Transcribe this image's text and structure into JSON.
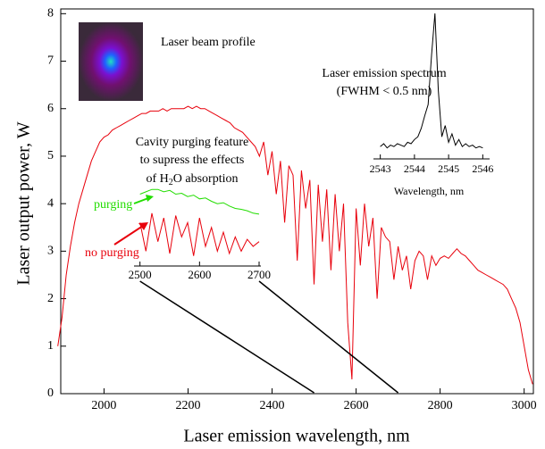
{
  "chart_data": [
    {
      "type": "line",
      "x_label": "Laser emission wavelength, nm",
      "y_label": "Laser output power, W",
      "xlim": [
        1897,
        3022
      ],
      "ylim": [
        0,
        8.1
      ],
      "xticks": [
        2000,
        2200,
        2400,
        2600,
        2800,
        3000
      ],
      "yticks": [
        0,
        1,
        2,
        3,
        4,
        5,
        6,
        7,
        8
      ],
      "annotations": {
        "beam": "Laser beam profile"
      },
      "x": [
        1890,
        1900,
        1910,
        1920,
        1930,
        1940,
        1950,
        1960,
        1970,
        1980,
        1990,
        2000,
        2010,
        2020,
        2030,
        2040,
        2050,
        2060,
        2070,
        2080,
        2090,
        2100,
        2110,
        2120,
        2130,
        2140,
        2150,
        2160,
        2170,
        2180,
        2190,
        2200,
        2210,
        2220,
        2230,
        2240,
        2250,
        2260,
        2270,
        2280,
        2290,
        2300,
        2310,
        2320,
        2330,
        2340,
        2350,
        2360,
        2370,
        2380,
        2390,
        2400,
        2410,
        2420,
        2430,
        2440,
        2450,
        2460,
        2470,
        2480,
        2490,
        2500,
        2510,
        2520,
        2530,
        2540,
        2550,
        2560,
        2570,
        2580,
        2590,
        2600,
        2610,
        2620,
        2630,
        2640,
        2650,
        2660,
        2670,
        2680,
        2690,
        2700,
        2710,
        2720,
        2730,
        2740,
        2750,
        2760,
        2770,
        2780,
        2790,
        2800,
        2810,
        2820,
        2830,
        2840,
        2850,
        2860,
        2870,
        2880,
        2890,
        2900,
        2910,
        2920,
        2930,
        2940,
        2950,
        2960,
        2970,
        2980,
        2990,
        3000,
        3010,
        3020
      ],
      "series": [
        {
          "color": "#e8000b",
          "values": [
            1.0,
            1.6,
            2.5,
            3.1,
            3.6,
            4.0,
            4.3,
            4.6,
            4.9,
            5.1,
            5.3,
            5.4,
            5.45,
            5.55,
            5.6,
            5.65,
            5.7,
            5.75,
            5.8,
            5.85,
            5.9,
            5.9,
            5.95,
            5.95,
            5.95,
            6.0,
            5.95,
            6.0,
            6.0,
            6.0,
            6.0,
            6.05,
            6.0,
            6.05,
            6.0,
            6.0,
            5.95,
            5.9,
            5.85,
            5.8,
            5.75,
            5.7,
            5.6,
            5.55,
            5.5,
            5.4,
            5.3,
            5.2,
            5.0,
            5.3,
            4.6,
            5.1,
            4.2,
            4.9,
            3.6,
            4.8,
            4.6,
            2.8,
            4.7,
            3.9,
            4.5,
            2.3,
            4.4,
            3.2,
            4.3,
            2.6,
            4.2,
            3.0,
            4.0,
            1.5,
            0.3,
            3.9,
            2.7,
            4.0,
            3.1,
            3.7,
            2.0,
            3.5,
            3.3,
            3.2,
            2.4,
            3.1,
            2.6,
            2.9,
            2.2,
            2.8,
            3.0,
            2.9,
            2.4,
            2.9,
            2.7,
            2.85,
            2.9,
            2.85,
            2.95,
            3.05,
            2.95,
            2.9,
            2.8,
            2.7,
            2.6,
            2.55,
            2.5,
            2.45,
            2.4,
            2.35,
            2.3,
            2.2,
            2.0,
            1.8,
            1.5,
            1.0,
            0.5,
            0.2
          ]
        }
      ]
    },
    {
      "type": "line",
      "x_label": "Wavelength, nm",
      "title": "Laser emission spectrum",
      "subtitle": "(FWHM < 0.5 nm)",
      "xlim": [
        2542.8,
        2546.2
      ],
      "xticks": [
        2543,
        2544,
        2545,
        2546
      ],
      "x": [
        2543.0,
        2543.1,
        2543.2,
        2543.3,
        2543.4,
        2543.5,
        2543.6,
        2543.7,
        2543.8,
        2543.9,
        2544.0,
        2544.1,
        2544.2,
        2544.3,
        2544.4,
        2544.5,
        2544.6,
        2544.7,
        2544.8,
        2544.9,
        2545.0,
        2545.1,
        2545.2,
        2545.3,
        2545.4,
        2545.5,
        2545.6,
        2545.7,
        2545.8,
        2545.9,
        2546.0
      ],
      "series": [
        {
          "color": "#000000",
          "values": [
            0.05,
            0.07,
            0.04,
            0.06,
            0.05,
            0.07,
            0.06,
            0.05,
            0.08,
            0.07,
            0.1,
            0.12,
            0.18,
            0.27,
            0.35,
            0.7,
            1.0,
            0.45,
            0.12,
            0.2,
            0.08,
            0.14,
            0.06,
            0.1,
            0.05,
            0.07,
            0.05,
            0.06,
            0.04,
            0.05,
            0.04
          ]
        }
      ]
    },
    {
      "type": "line",
      "title": [
        "Cavity purging feature",
        "to supress the effects",
        "of H",
        "2",
        "O absorption"
      ],
      "xlim": [
        2490,
        2703
      ],
      "xticks": [
        2500,
        2600,
        2700
      ],
      "x": [
        2500,
        2510,
        2520,
        2530,
        2540,
        2550,
        2560,
        2570,
        2580,
        2590,
        2600,
        2610,
        2620,
        2630,
        2640,
        2650,
        2660,
        2670,
        2680,
        2690,
        2700
      ],
      "series": [
        {
          "name": "purging",
          "color": "#22dd00",
          "values": [
            4.2,
            4.25,
            4.3,
            4.3,
            4.25,
            4.28,
            4.2,
            4.22,
            4.15,
            4.18,
            4.1,
            4.12,
            4.05,
            4.0,
            4.02,
            3.95,
            3.9,
            3.88,
            3.85,
            3.8,
            3.78
          ]
        },
        {
          "name": "no purging",
          "color": "#e8000b",
          "values": [
            3.6,
            3.0,
            3.8,
            3.2,
            3.7,
            2.95,
            3.75,
            3.3,
            3.6,
            2.9,
            3.7,
            3.1,
            3.5,
            3.0,
            3.4,
            2.95,
            3.3,
            3.0,
            3.25,
            3.1,
            3.2
          ]
        }
      ]
    }
  ]
}
